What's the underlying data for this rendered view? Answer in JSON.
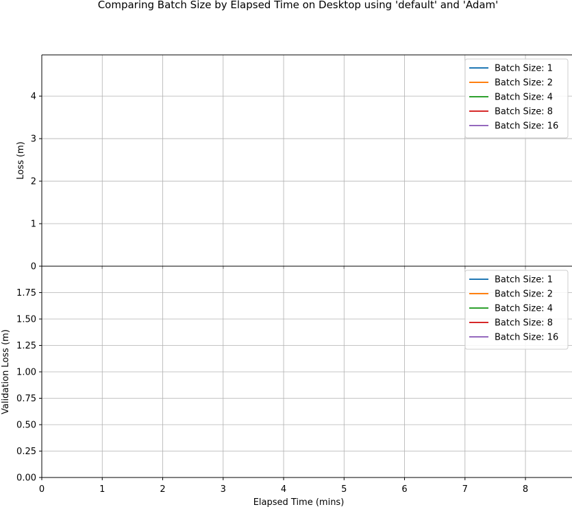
{
  "figure": {
    "title": "Comparing Batch Size by Elapsed Time on Desktop using 'default' and 'Adam'"
  },
  "chart_data": [
    {
      "type": "line",
      "xlabel": "",
      "ylabel": "Loss (m)",
      "xlim": [
        0,
        8.77
      ],
      "ylim": [
        0,
        4.97
      ],
      "xticks": [],
      "yticks": [
        0,
        1,
        2,
        3,
        4
      ],
      "ytick_labels": [
        "0",
        "1",
        "2",
        "3",
        "4"
      ],
      "grid": true,
      "legend_position": "top-right",
      "series": [
        {
          "name": "Batch Size: 1",
          "color": "#1f77b4",
          "x": [],
          "y": []
        },
        {
          "name": "Batch Size: 2",
          "color": "#ff7f0e",
          "x": [],
          "y": []
        },
        {
          "name": "Batch Size: 4",
          "color": "#2ca02c",
          "x": [],
          "y": []
        },
        {
          "name": "Batch Size: 8",
          "color": "#d62728",
          "x": [],
          "y": []
        },
        {
          "name": "Batch Size: 16",
          "color": "#9467bd",
          "x": [],
          "y": []
        }
      ]
    },
    {
      "type": "line",
      "xlabel": "Elapsed Time (mins)",
      "ylabel": "Validation Loss (m)",
      "xlim": [
        0,
        8.77
      ],
      "ylim": [
        0,
        2.0
      ],
      "xticks": [
        0,
        1,
        2,
        3,
        4,
        5,
        6,
        7,
        8
      ],
      "xtick_labels": [
        "0",
        "1",
        "2",
        "3",
        "4",
        "5",
        "6",
        "7",
        "8"
      ],
      "yticks": [
        0,
        0.25,
        0.5,
        0.75,
        1.0,
        1.25,
        1.5,
        1.75
      ],
      "ytick_labels": [
        "0.00",
        "0.25",
        "0.50",
        "0.75",
        "1.00",
        "1.25",
        "1.50",
        "1.75"
      ],
      "grid": true,
      "legend_position": "top-right",
      "series": [
        {
          "name": "Batch Size: 1",
          "color": "#1f77b4",
          "x": [],
          "y": []
        },
        {
          "name": "Batch Size: 2",
          "color": "#ff7f0e",
          "x": [],
          "y": []
        },
        {
          "name": "Batch Size: 4",
          "color": "#2ca02c",
          "x": [],
          "y": []
        },
        {
          "name": "Batch Size: 8",
          "color": "#d62728",
          "x": [],
          "y": []
        },
        {
          "name": "Batch Size: 16",
          "color": "#9467bd",
          "x": [],
          "y": []
        }
      ]
    }
  ]
}
